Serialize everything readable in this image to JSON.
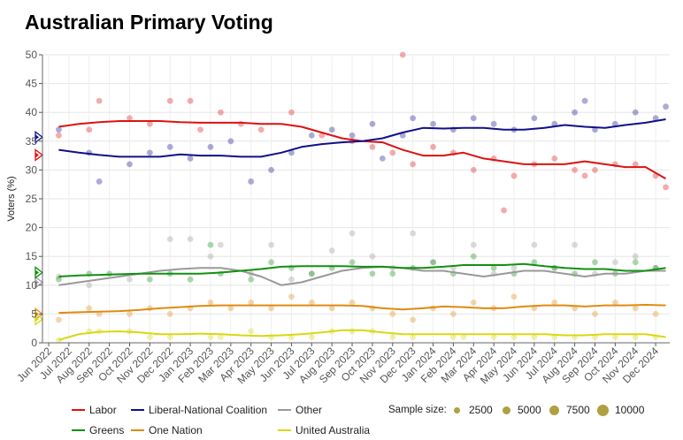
{
  "chart_data": {
    "type": "scatter",
    "title": "Australian Primary Voting",
    "xlabel": "",
    "ylabel": "Voters (%)",
    "ylim": [
      0,
      50
    ],
    "yticks": [
      0,
      5,
      10,
      15,
      20,
      25,
      30,
      35,
      40,
      45,
      50
    ],
    "grid": true,
    "months": [
      "Jun 2022",
      "Jul 2022",
      "Aug 2022",
      "Sep 2022",
      "Oct 2022",
      "Nov 2022",
      "Dec 2022",
      "Jan 2023",
      "Feb 2023",
      "Mar 2023",
      "Apr 2023",
      "May 2023",
      "Jun 2023",
      "Jul 2023",
      "Aug 2023",
      "Sep 2023",
      "Oct 2023",
      "Nov 2023",
      "Dec 2023",
      "Jan 2024",
      "Feb 2024",
      "Mar 2024",
      "Apr 2024",
      "May 2024",
      "Jun 2024",
      "Jul 2024",
      "Aug 2024",
      "Sep 2024",
      "Oct 2024",
      "Nov 2024",
      "Dec 2024"
    ],
    "legend_placement": "bottom",
    "sample_size_legend": {
      "label": "Sample size:",
      "values": [
        "2500",
        "5000",
        "7500",
        "10000"
      ],
      "color": "#b0a040"
    },
    "series": [
      {
        "name": "Labor",
        "color": "#dd1111",
        "election": 32.6,
        "trend": [
          37.5,
          38,
          38.3,
          38.5,
          38.5,
          38.5,
          38.3,
          38.2,
          38.2,
          38.2,
          38,
          38,
          37.5,
          36.5,
          35.5,
          35,
          34.8,
          33.5,
          32.5,
          32.5,
          33,
          32,
          31.5,
          31,
          31,
          31,
          31.5,
          31,
          30.5,
          30.5,
          28.5
        ],
        "polls": [
          [
            0.5,
            36
          ],
          [
            2,
            37
          ],
          [
            2.5,
            42
          ],
          [
            4,
            39
          ],
          [
            5,
            38
          ],
          [
            6,
            42
          ],
          [
            7,
            42
          ],
          [
            7.5,
            37
          ],
          [
            8.5,
            40
          ],
          [
            9.5,
            38
          ],
          [
            10.5,
            37
          ],
          [
            12,
            40
          ],
          [
            13.5,
            36
          ],
          [
            15,
            35
          ],
          [
            16,
            34
          ],
          [
            17,
            33
          ],
          [
            17.5,
            50
          ],
          [
            18,
            31
          ],
          [
            19,
            34
          ],
          [
            20,
            33
          ],
          [
            21,
            30
          ],
          [
            22,
            32
          ],
          [
            22.5,
            23
          ],
          [
            23,
            29
          ],
          [
            24,
            31
          ],
          [
            25,
            32
          ],
          [
            26,
            30
          ],
          [
            26.5,
            29
          ],
          [
            27,
            30
          ],
          [
            28,
            31
          ],
          [
            29,
            31
          ],
          [
            30,
            29
          ],
          [
            30.5,
            27
          ]
        ]
      },
      {
        "name": "Liberal-National Coalition",
        "color": "#10108a",
        "election": 35.7,
        "trend": [
          33.5,
          33,
          32.6,
          32.3,
          32.3,
          32.3,
          32.7,
          32.5,
          32.5,
          32.3,
          32.3,
          33,
          34,
          34.5,
          34.8,
          35,
          35.5,
          36.5,
          37.3,
          37.2,
          37.3,
          37.3,
          37,
          37,
          37.3,
          37.8,
          37.5,
          37.3,
          37.8,
          38.2,
          38.8
        ],
        "polls": [
          [
            0.5,
            37
          ],
          [
            2,
            33
          ],
          [
            2.5,
            28
          ],
          [
            4,
            31
          ],
          [
            5,
            33
          ],
          [
            6,
            34
          ],
          [
            7,
            32
          ],
          [
            8,
            34
          ],
          [
            9,
            35
          ],
          [
            10,
            28
          ],
          [
            11,
            30
          ],
          [
            12,
            33
          ],
          [
            13,
            36
          ],
          [
            14,
            37
          ],
          [
            15,
            36
          ],
          [
            16,
            38
          ],
          [
            16.5,
            32
          ],
          [
            17.5,
            36
          ],
          [
            18,
            39
          ],
          [
            19,
            38
          ],
          [
            20,
            37
          ],
          [
            21,
            39
          ],
          [
            22,
            38
          ],
          [
            23,
            37
          ],
          [
            24,
            39
          ],
          [
            25,
            38
          ],
          [
            26,
            40
          ],
          [
            26.5,
            42
          ],
          [
            27,
            37
          ],
          [
            28,
            38
          ],
          [
            29,
            40
          ],
          [
            30,
            39
          ],
          [
            30.5,
            41
          ]
        ]
      },
      {
        "name": "Other",
        "color": "#999999",
        "election": 10.5,
        "trend": [
          10,
          10.5,
          11,
          11.5,
          12,
          12.5,
          12.8,
          13,
          13,
          12.5,
          11.5,
          10,
          10.5,
          11.5,
          12.5,
          13,
          13.2,
          13,
          12.5,
          12.5,
          12,
          11.5,
          12,
          12.5,
          12.5,
          12,
          11.5,
          12,
          12,
          12.5,
          12.5
        ],
        "polls": [
          [
            0.5,
            11.5
          ],
          [
            2,
            10
          ],
          [
            4,
            11
          ],
          [
            6,
            18
          ],
          [
            7,
            18
          ],
          [
            8,
            15
          ],
          [
            8.5,
            17
          ],
          [
            10,
            12
          ],
          [
            11,
            17
          ],
          [
            12,
            11
          ],
          [
            13,
            12
          ],
          [
            14,
            16
          ],
          [
            15,
            19
          ],
          [
            16,
            15
          ],
          [
            17,
            13
          ],
          [
            18,
            19
          ],
          [
            19,
            14
          ],
          [
            20,
            13
          ],
          [
            21,
            17
          ],
          [
            22,
            12
          ],
          [
            23,
            13
          ],
          [
            24,
            17
          ],
          [
            25,
            13
          ],
          [
            26,
            17
          ],
          [
            27,
            12
          ],
          [
            28,
            14
          ],
          [
            29,
            15
          ],
          [
            30,
            13
          ]
        ]
      },
      {
        "name": "Greens",
        "color": "#109010",
        "election": 12.2,
        "trend": [
          11.5,
          11.7,
          11.8,
          11.9,
          12,
          12,
          12,
          12,
          12.2,
          12.5,
          12.8,
          13.2,
          13.3,
          13.3,
          13.3,
          13.2,
          13.2,
          13,
          13,
          13.2,
          13.5,
          13.5,
          13.5,
          13.7,
          13.3,
          13,
          12.8,
          12.8,
          12.5,
          12.5,
          13
        ],
        "polls": [
          [
            0.5,
            11
          ],
          [
            2,
            12
          ],
          [
            3,
            12
          ],
          [
            5,
            11
          ],
          [
            6,
            12
          ],
          [
            7,
            11
          ],
          [
            8,
            17
          ],
          [
            8.5,
            12
          ],
          [
            10,
            11
          ],
          [
            11,
            14
          ],
          [
            12,
            13
          ],
          [
            13,
            12
          ],
          [
            14,
            13
          ],
          [
            15,
            14
          ],
          [
            16,
            12
          ],
          [
            17,
            12
          ],
          [
            18,
            13
          ],
          [
            19,
            14
          ],
          [
            20,
            12
          ],
          [
            21,
            15
          ],
          [
            22,
            13
          ],
          [
            23,
            12
          ],
          [
            24,
            14
          ],
          [
            25,
            13
          ],
          [
            26,
            12
          ],
          [
            27,
            14
          ],
          [
            28,
            12
          ],
          [
            29,
            14
          ],
          [
            30,
            13
          ]
        ]
      },
      {
        "name": "One Nation",
        "color": "#e08a10",
        "election": 5.0,
        "trend": [
          5.2,
          5.3,
          5.4,
          5.5,
          5.7,
          6,
          6.2,
          6.4,
          6.5,
          6.5,
          6.5,
          6.5,
          6.5,
          6.5,
          6.5,
          6.4,
          6,
          5.8,
          6,
          6.3,
          6.2,
          6,
          6,
          6.3,
          6.5,
          6.5,
          6.3,
          6.5,
          6.5,
          6.6,
          6.5
        ],
        "polls": [
          [
            0.5,
            4
          ],
          [
            2,
            6
          ],
          [
            2.5,
            5
          ],
          [
            4,
            5
          ],
          [
            5,
            6
          ],
          [
            6,
            5
          ],
          [
            7,
            6
          ],
          [
            8,
            7
          ],
          [
            9,
            6
          ],
          [
            10,
            7
          ],
          [
            11,
            6
          ],
          [
            12,
            8
          ],
          [
            13,
            7
          ],
          [
            14,
            6
          ],
          [
            15,
            7
          ],
          [
            16,
            6
          ],
          [
            17,
            5
          ],
          [
            18,
            4
          ],
          [
            19,
            6
          ],
          [
            20,
            5
          ],
          [
            21,
            7
          ],
          [
            22,
            6
          ],
          [
            23,
            8
          ],
          [
            24,
            6
          ],
          [
            25,
            7
          ],
          [
            26,
            6
          ],
          [
            27,
            5
          ],
          [
            28,
            7
          ],
          [
            29,
            6
          ],
          [
            30,
            5
          ]
        ]
      },
      {
        "name": "United Australia",
        "color": "#d8d810",
        "election": 4.1,
        "trend": [
          0.5,
          1.5,
          1.9,
          2,
          1.8,
          1.5,
          1.5,
          1.6,
          1.5,
          1.3,
          1.2,
          1.3,
          1.5,
          1.8,
          2.2,
          2.2,
          1.8,
          1.5,
          1.5,
          1.5,
          1.5,
          1.5,
          1.5,
          1.5,
          1.5,
          1.3,
          1.3,
          1.5,
          1.5,
          1.5,
          1.0
        ],
        "polls": [
          [
            0.5,
            0.5
          ],
          [
            2,
            2
          ],
          [
            2.5,
            2
          ],
          [
            4,
            2
          ],
          [
            5,
            1
          ],
          [
            6,
            1
          ],
          [
            8,
            1
          ],
          [
            8.5,
            1
          ],
          [
            10,
            2
          ],
          [
            11,
            1
          ],
          [
            12,
            1
          ],
          [
            13,
            1
          ],
          [
            14,
            2
          ],
          [
            15,
            2
          ],
          [
            16,
            2
          ],
          [
            17,
            1
          ],
          [
            18,
            1
          ],
          [
            20,
            1
          ],
          [
            20.5,
            1
          ],
          [
            22,
            1
          ],
          [
            23,
            1
          ],
          [
            24,
            1
          ],
          [
            25,
            1
          ],
          [
            26,
            1
          ],
          [
            27,
            1
          ],
          [
            28,
            1
          ],
          [
            29,
            1
          ],
          [
            30,
            1
          ]
        ]
      }
    ]
  }
}
